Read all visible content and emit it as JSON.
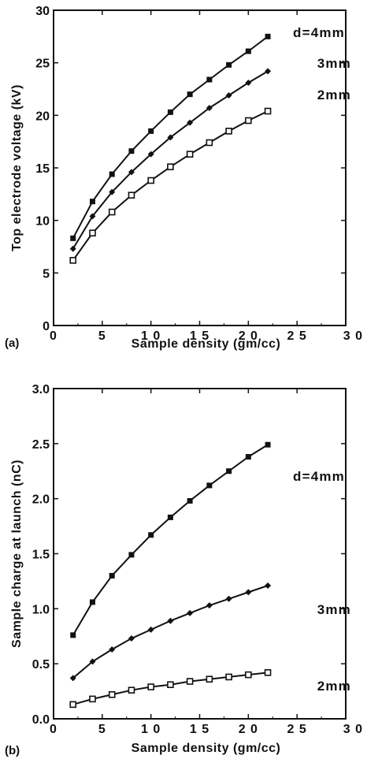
{
  "chart_data": [
    {
      "panel_label": "(a)",
      "type": "line",
      "xlabel": "Sample  density  (gm/cc)",
      "ylabel": "Top  electrode  voltage  (kV)",
      "xlim": [
        0,
        30
      ],
      "ylim": [
        0,
        30
      ],
      "xticks": [
        0,
        5,
        10,
        15,
        20,
        25,
        30
      ],
      "yticks": [
        0,
        5,
        10,
        15,
        20,
        25,
        30
      ],
      "xtick_labels": [
        "0",
        "5",
        "1 0",
        "1 5",
        "2 0",
        "2 5",
        "3 0"
      ],
      "ytick_labels": [
        "0",
        "5",
        "10",
        "15",
        "20",
        "25",
        "30"
      ],
      "grid": false,
      "x": [
        2,
        4,
        6,
        8,
        10,
        12,
        14,
        16,
        18,
        20,
        22
      ],
      "series": [
        {
          "name": "d=4mm",
          "marker": "square",
          "values": [
            8.3,
            11.8,
            14.4,
            16.6,
            18.5,
            20.3,
            22.0,
            23.4,
            24.8,
            26.1,
            27.5
          ]
        },
        {
          "name": "3mm",
          "marker": "diamond",
          "values": [
            7.3,
            10.4,
            12.7,
            14.6,
            16.3,
            17.9,
            19.3,
            20.7,
            21.9,
            23.1,
            24.2
          ]
        },
        {
          "name": "2mm",
          "marker": "square-open",
          "values": [
            6.2,
            8.8,
            10.8,
            12.4,
            13.8,
            15.1,
            16.3,
            17.4,
            18.5,
            19.5,
            20.4
          ]
        }
      ]
    },
    {
      "panel_label": "(b)",
      "type": "line",
      "xlabel": "Sample  density  (gm/cc)",
      "ylabel": "Sample charge at launch  (nC)",
      "xlim": [
        0,
        30
      ],
      "ylim": [
        0,
        3
      ],
      "xticks": [
        0,
        5,
        10,
        15,
        20,
        25,
        30
      ],
      "yticks": [
        0,
        0.5,
        1.0,
        1.5,
        2.0,
        2.5,
        3.0
      ],
      "xtick_labels": [
        "0",
        "5",
        "1 0",
        "1 5",
        "2 0",
        "2 5",
        "3 0"
      ],
      "ytick_labels": [
        "0.0",
        "0.5",
        "1.0",
        "1.5",
        "2.0",
        "2.5",
        "3.0"
      ],
      "grid": false,
      "x": [
        2,
        4,
        6,
        8,
        10,
        12,
        14,
        16,
        18,
        20,
        22
      ],
      "series": [
        {
          "name": "d=4mm",
          "marker": "square",
          "values": [
            0.76,
            1.06,
            1.3,
            1.49,
            1.67,
            1.83,
            1.98,
            2.12,
            2.25,
            2.38,
            2.49
          ]
        },
        {
          "name": "3mm",
          "marker": "diamond",
          "values": [
            0.37,
            0.52,
            0.63,
            0.73,
            0.81,
            0.89,
            0.96,
            1.03,
            1.09,
            1.15,
            1.21
          ]
        },
        {
          "name": "2mm",
          "marker": "square-open",
          "values": [
            0.13,
            0.18,
            0.22,
            0.26,
            0.29,
            0.31,
            0.34,
            0.36,
            0.38,
            0.4,
            0.42
          ]
        }
      ]
    }
  ]
}
